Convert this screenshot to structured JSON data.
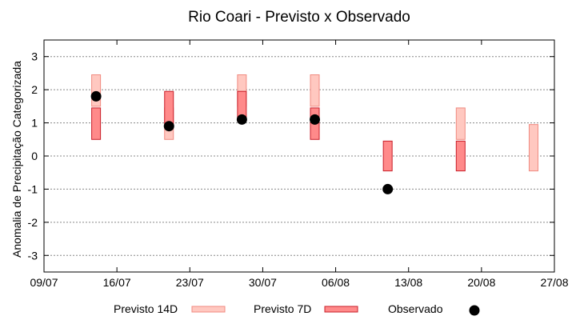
{
  "chart_data": {
    "type": "range-bar-scatter",
    "title": "Rio Coari - Previsto x Observado",
    "xlabel": "",
    "ylabel": "Anomalia de Precipitação Categorizada",
    "x_ticks": [
      "09/07",
      "16/07",
      "23/07",
      "30/07",
      "06/08",
      "13/08",
      "20/08",
      "27/08"
    ],
    "x_range": [
      "09/07",
      "27/08"
    ],
    "y_ticks": [
      3,
      2,
      1,
      0,
      -1,
      -2,
      -3
    ],
    "y_tick_labels": [
      "3",
      "2",
      "1",
      "0",
      "-1",
      "-2",
      "-3"
    ],
    "ylim": [
      -3.5,
      3.5
    ],
    "grid": true,
    "legend_position": "bottom",
    "series": [
      {
        "name": "Previsto 14D",
        "kind": "range",
        "fill": "#ffc8c0",
        "stroke": "#f08a80",
        "points": [
          {
            "date": "14/07",
            "low": 1.5,
            "high": 2.45
          },
          {
            "date": "21/07",
            "low": 0.5,
            "high": 1.45
          },
          {
            "date": "28/07",
            "low": 1.5,
            "high": 2.45
          },
          {
            "date": "04/08",
            "low": 1.5,
            "high": 2.45
          },
          {
            "date": "18/08",
            "low": 0.5,
            "high": 1.45
          },
          {
            "date": "25/08",
            "low": -0.45,
            "high": 0.95
          }
        ]
      },
      {
        "name": "Previsto 7D",
        "kind": "range",
        "fill": "#ff8a8a",
        "stroke": "#c81e28",
        "points": [
          {
            "date": "14/07",
            "low": 0.5,
            "high": 1.45
          },
          {
            "date": "21/07",
            "low": 0.9,
            "high": 1.95
          },
          {
            "date": "28/07",
            "low": 1.05,
            "high": 1.95
          },
          {
            "date": "04/08",
            "low": 0.5,
            "high": 1.45
          },
          {
            "date": "11/08",
            "low": -0.45,
            "high": 0.45
          },
          {
            "date": "18/08",
            "low": -0.45,
            "high": 0.45
          }
        ]
      },
      {
        "name": "Observado",
        "kind": "scatter",
        "color": "#000000",
        "points": [
          {
            "date": "14/07",
            "y": 1.8
          },
          {
            "date": "21/07",
            "y": 0.9
          },
          {
            "date": "28/07",
            "y": 1.1
          },
          {
            "date": "04/08",
            "y": 1.1
          },
          {
            "date": "11/08",
            "y": -1.0
          }
        ]
      }
    ]
  }
}
